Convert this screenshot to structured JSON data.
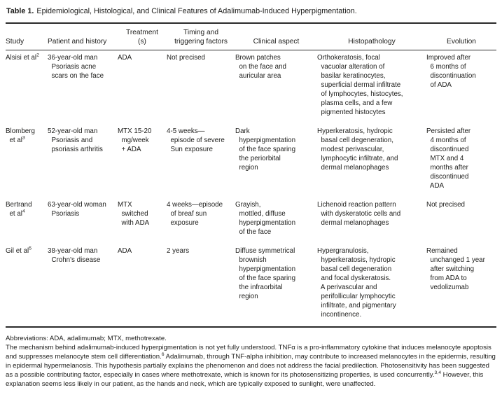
{
  "page": {
    "background_color": "#ffffff",
    "text_color": "#1d1d1b",
    "rule_color": "#2b2b2b"
  },
  "title": {
    "label": "Table 1.",
    "text": "Epidemiological, Histological, and Clinical Features of Adalimumab-Induced Hyperpigmentation."
  },
  "table": {
    "columns": [
      {
        "label": "Study"
      },
      {
        "label": "Patient and history"
      },
      {
        "label": "Treatment\n(s)"
      },
      {
        "label": "Timing and\ntriggering factors"
      },
      {
        "label": "Clinical aspect"
      },
      {
        "label": "Histopathology"
      },
      {
        "label": "Evolution"
      }
    ],
    "rows": [
      {
        "study_runs": [
          {
            "t": "Alsisi et al"
          },
          {
            "t": "2",
            "sup": true
          }
        ],
        "patient": "36-year-old man\n  Psoriasis acne\n  scars on the face",
        "treatment": "ADA",
        "timing": "Not precised",
        "clinical": "Brown patches\n  on the face and\n  auricular area",
        "histopathology": "Orthokeratosis, focal\n  vacuolar alteration of\n  basilar keratinocytes,\n  superficial dermal infiltrate\n  of lymphocytes, histocytes,\n  plasma cells, and a few\n  pigmented histocytes",
        "evolution": "Improved after\n  6 months of\n  discontinuation\n  of ADA"
      },
      {
        "study_runs": [
          {
            "t": "Blomberg\n  et al"
          },
          {
            "t": "3",
            "sup": true
          }
        ],
        "patient": "52-year-old man\n  Psoriasis and\n  psoriasis arthritis",
        "treatment": "MTX 15-20\n  mg/week\n  + ADA",
        "timing": "4-5 weeks—\n  episode of severe\n  Sun exposure",
        "clinical": "Dark\n  hyperpigmentation\n  of the face sparing\n  the periorbital\n  region",
        "histopathology": "Hyperkeratosis, hydropic\n  basal cell degeneration,\n  modest perivascular,\n  lymphocytic infiltrate, and\n  dermal melanophages",
        "evolution": "Persisted after\n  4 months of\n  discontinued\n  MTX and 4\n  months after\n  discontinued\n  ADA"
      },
      {
        "study_runs": [
          {
            "t": "Bertrand\n  et al"
          },
          {
            "t": "4",
            "sup": true
          }
        ],
        "patient": "63-year-old woman\n  Psoriasis",
        "treatment": "MTX\n  switched\n  with ADA",
        "timing": "4 weeks—episode\n  of breaf sun\n  exposure",
        "clinical": "Grayish,\n  mottled, diffuse\n  hyperpigmentation\n  of the face",
        "histopathology": "Lichenoid reaction pattern\n  with dyskeratotic cells and\n  dermal melanophages",
        "evolution": "Not precised"
      },
      {
        "study_runs": [
          {
            "t": "Gil et al"
          },
          {
            "t": "5",
            "sup": true
          }
        ],
        "patient": "38-year-old man\n  Crohn's disease",
        "treatment": "ADA",
        "timing": "2 years",
        "clinical": "Diffuse symmetrical\n  brownish\n  hyperpigmentation\n  of the face sparing\n  the infraorbital\n  region",
        "histopathology": "Hypergranulosis,\n  hyperkeratosis, hydropic\n  basal cell degeneration\n  and focal dyskeratosis.\n  A perivascular and\n  perifollicular lymphocytic\n  infiltrate, and pigmentary\n  incontinence.",
        "evolution": "Remained\n  unchanged 1 year\n  after switching\n  from ADA to\n  vedolizumab"
      }
    ]
  },
  "footnotes": {
    "abbreviations": "Abbreviations: ADA, adalimumab; MTX, methotrexate.",
    "mechanism_runs": [
      {
        "t": "The mechanism behind adalimumab-induced hyperpigmentation is not yet fully understood. TNFα is a pro-inflammatory cytokine that induces melanocyte apoptosis and suppresses melanocyte stem cell differentiation."
      },
      {
        "t": "6",
        "sup": true
      },
      {
        "t": " Adalimumab, through TNF-alpha inhibition, may contribute to increased melanocytes in the epidermis, resulting in epidermal hypermelanosis. This hypothesis partially explains the phenomenon and does not address the facial predilection. Photosensitivity has been suggested as a possible contributing factor, especially in cases where methotrexate, which is known for its photosensitizing properties, is used concurrently."
      },
      {
        "t": "3,4",
        "sup": true
      },
      {
        "t": " However, this explanation seems less likely in our patient, as the hands and neck, which are typically exposed to sunlight, were unaffected."
      }
    ]
  }
}
